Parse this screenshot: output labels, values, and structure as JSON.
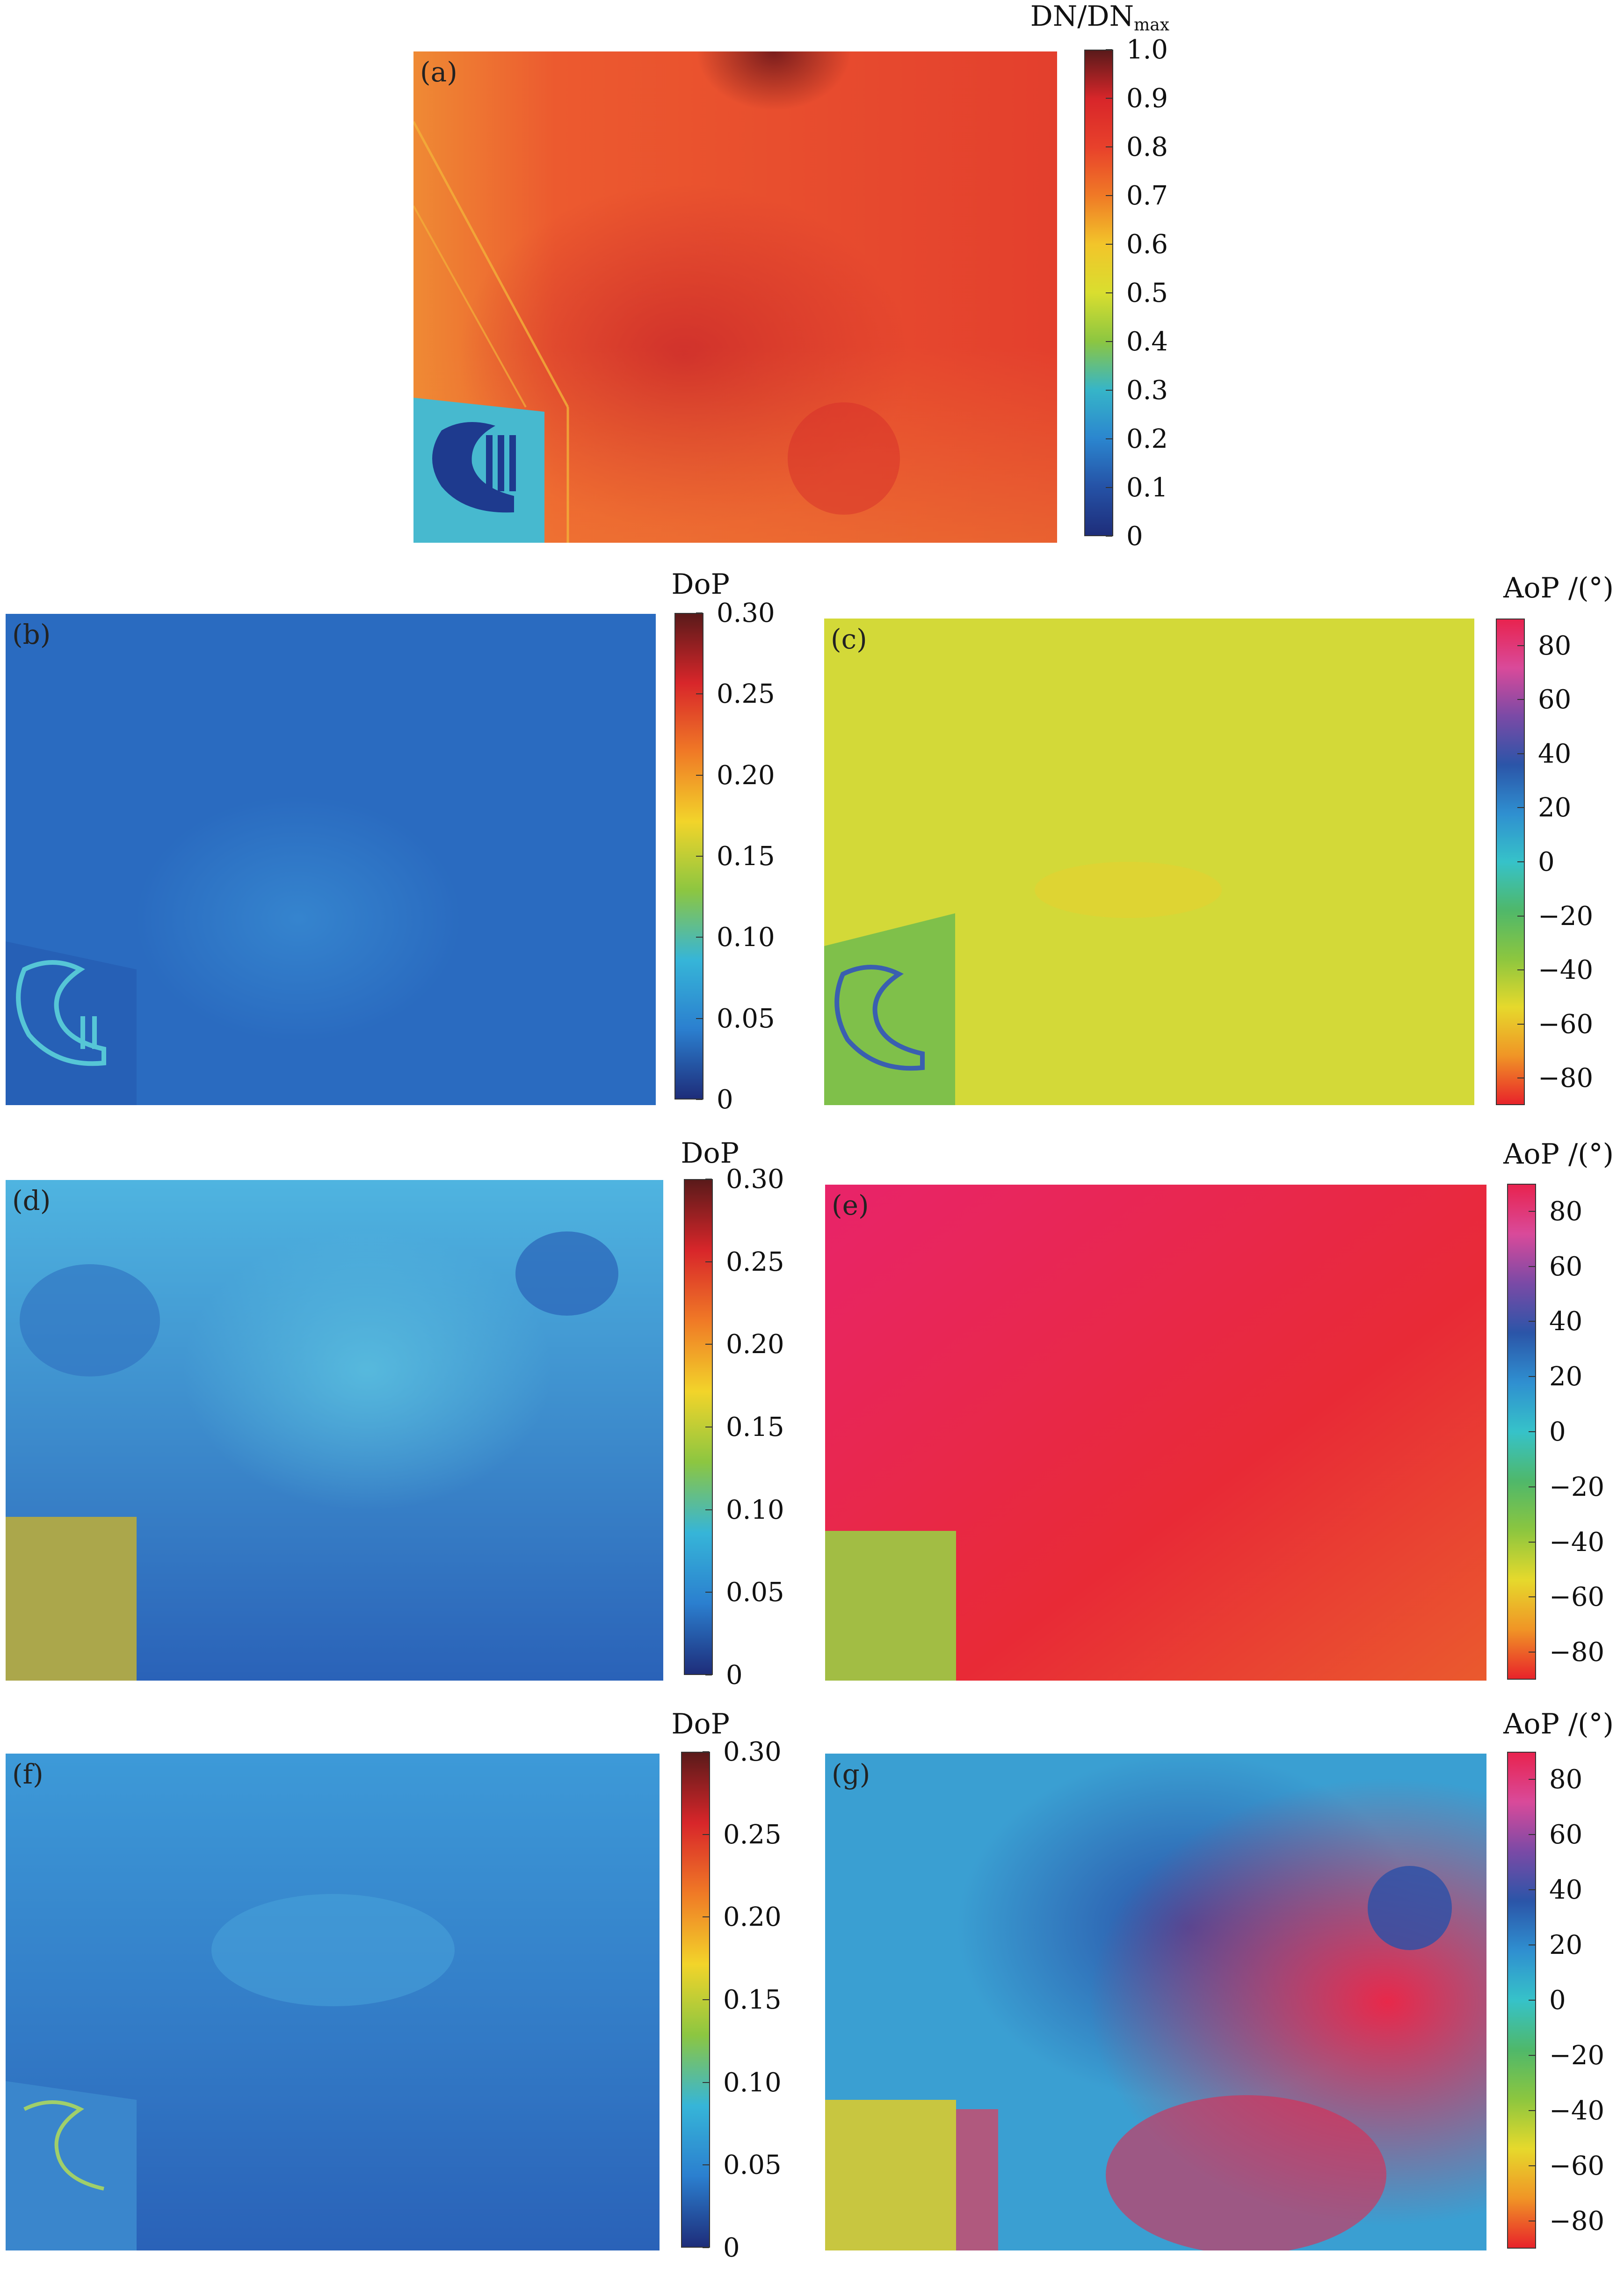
{
  "figure": {
    "panels": [
      {
        "id": "a",
        "label": "(a)",
        "kind": "intensity",
        "colorbar": {
          "title_main": "DN/DN",
          "title_sub": "max",
          "ticks": [
            "1.0",
            "0.9",
            "0.8",
            "0.7",
            "0.6",
            "0.5",
            "0.4",
            "0.3",
            "0.2",
            "0.1",
            "0"
          ],
          "gradient": [
            "#5a1a1a",
            "#d8262a",
            "#e8412b",
            "#f07a26",
            "#f2c52a",
            "#d9de2f",
            "#8cc641",
            "#36b5c8",
            "#2b86cf",
            "#2552a6",
            "#1e2d7a"
          ]
        }
      },
      {
        "id": "b",
        "label": "(b)",
        "kind": "dop",
        "colorbar": {
          "title_main": "DoP",
          "title_sub": "",
          "ticks": [
            "0.30",
            "0.25",
            "0.20",
            "0.15",
            "0.10",
            "0.05",
            "0"
          ],
          "gradient": [
            "#5a1a1a",
            "#d8262a",
            "#f07a26",
            "#f2d42a",
            "#8cc641",
            "#36b5d8",
            "#2b7fcf",
            "#1e2d7a"
          ]
        }
      },
      {
        "id": "c",
        "label": "(c)",
        "kind": "aop",
        "colorbar": {
          "title_main": "AoP /(°)",
          "title_sub": "",
          "ticks": [
            "80",
            "60",
            "40",
            "20",
            "0",
            "−20",
            "−40",
            "−60",
            "−80"
          ],
          "gradient": [
            "#e8234f",
            "#d94a9a",
            "#7a4aa6",
            "#2b55a8",
            "#2f8fd0",
            "#36c2c9",
            "#4fb86a",
            "#8cc63f",
            "#e6d92c",
            "#f09526",
            "#e8232a"
          ]
        }
      },
      {
        "id": "d",
        "label": "(d)",
        "kind": "dop",
        "colorbar": {
          "title_main": "DoP",
          "title_sub": "",
          "ticks": [
            "0.30",
            "0.25",
            "0.20",
            "0.15",
            "0.10",
            "0.05",
            "0"
          ],
          "gradient": [
            "#5a1a1a",
            "#d8262a",
            "#f07a26",
            "#f2d42a",
            "#8cc641",
            "#36b5d8",
            "#2b7fcf",
            "#1e2d7a"
          ]
        }
      },
      {
        "id": "e",
        "label": "(e)",
        "kind": "aop",
        "colorbar": {
          "title_main": "AoP /(°)",
          "title_sub": "",
          "ticks": [
            "80",
            "60",
            "40",
            "20",
            "0",
            "−20",
            "−40",
            "−60",
            "−80"
          ],
          "gradient": [
            "#e8234f",
            "#d94a9a",
            "#7a4aa6",
            "#2b55a8",
            "#2f8fd0",
            "#36c2c9",
            "#4fb86a",
            "#8cc63f",
            "#e6d92c",
            "#f09526",
            "#e8232a"
          ]
        }
      },
      {
        "id": "f",
        "label": "(f)",
        "kind": "dop",
        "colorbar": {
          "title_main": "DoP",
          "title_sub": "",
          "ticks": [
            "0.30",
            "0.25",
            "0.20",
            "0.15",
            "0.10",
            "0.05",
            "0"
          ],
          "gradient": [
            "#5a1a1a",
            "#d8262a",
            "#f07a26",
            "#f2d42a",
            "#8cc641",
            "#36b5d8",
            "#2b7fcf",
            "#1e2d7a"
          ]
        }
      },
      {
        "id": "g",
        "label": "(g)",
        "kind": "aop",
        "colorbar": {
          "title_main": "AoP /(°)",
          "title_sub": "",
          "ticks": [
            "80",
            "60",
            "40",
            "20",
            "0",
            "−20",
            "−40",
            "−60",
            "−80"
          ],
          "gradient": [
            "#e8234f",
            "#d94a9a",
            "#7a4aa6",
            "#2b55a8",
            "#2f8fd0",
            "#36c2c9",
            "#4fb86a",
            "#8cc63f",
            "#e6d92c",
            "#f09526",
            "#e8232a"
          ]
        }
      }
    ]
  }
}
